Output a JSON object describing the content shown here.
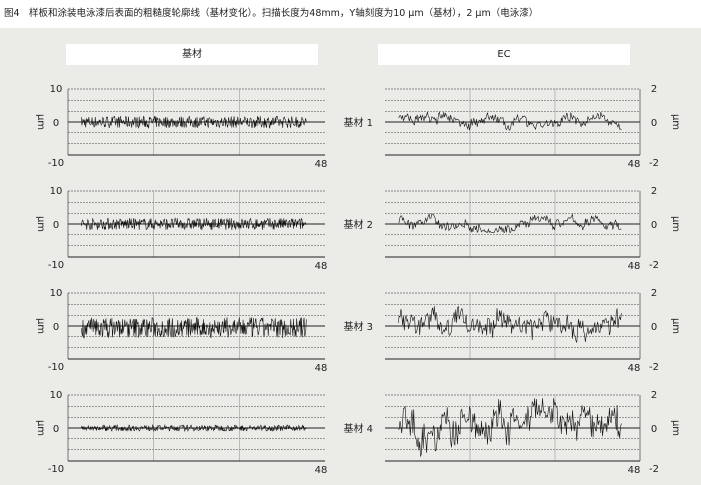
{
  "caption": "图4　样板和涂装电泳漆后表面的粗糙度轮廓线（基材变化）。扫描长度为48mm，Y轴刻度为10 μm（基材），2 μm（电泳漆）",
  "headers": {
    "left": "基材",
    "right": "EC"
  },
  "unit": "μm",
  "chart_data": [
    {
      "type": "line",
      "column": "基材",
      "row": "基材 1",
      "xlim": [
        0,
        48
      ],
      "ylim": [
        -10,
        10
      ],
      "yticks": [
        "10",
        "0",
        "-10"
      ],
      "xtick": "48",
      "approx_range": [
        -2,
        2
      ],
      "grid": true
    },
    {
      "type": "line",
      "column": "基材",
      "row": "基材 2",
      "xlim": [
        0,
        48
      ],
      "ylim": [
        -10,
        10
      ],
      "yticks": [
        "10",
        "0",
        "-10"
      ],
      "xtick": "48",
      "approx_range": [
        -2,
        2
      ],
      "grid": true
    },
    {
      "type": "line",
      "column": "基材",
      "row": "基材 3",
      "xlim": [
        0,
        48
      ],
      "ylim": [
        -10,
        10
      ],
      "yticks": [
        "10",
        "0",
        "-10"
      ],
      "xtick": "48",
      "approx_range": [
        -4,
        3
      ],
      "grid": true
    },
    {
      "type": "line",
      "column": "基材",
      "row": "基材 4",
      "xlim": [
        0,
        48
      ],
      "ylim": [
        -10,
        10
      ],
      "yticks": [
        "10",
        "0",
        "-10"
      ],
      "xtick": "48",
      "approx_range": [
        -1,
        1
      ],
      "grid": true
    },
    {
      "type": "line",
      "column": "EC",
      "row": "基材 1",
      "xlim": [
        0,
        48
      ],
      "ylim": [
        -2,
        2
      ],
      "yticks": [
        "2",
        "0",
        "-2"
      ],
      "xtick": "48",
      "approx_range": [
        -0.5,
        0.6
      ],
      "grid": true
    },
    {
      "type": "line",
      "column": "EC",
      "row": "基材 2",
      "xlim": [
        0,
        48
      ],
      "ylim": [
        -2,
        2
      ],
      "yticks": [
        "2",
        "0",
        "-2"
      ],
      "xtick": "48",
      "approx_range": [
        -0.5,
        0.6
      ],
      "grid": true
    },
    {
      "type": "line",
      "column": "EC",
      "row": "基材 3",
      "xlim": [
        0,
        48
      ],
      "ylim": [
        -2,
        2
      ],
      "yticks": [
        "2",
        "0",
        "-2"
      ],
      "xtick": "48",
      "approx_range": [
        -1,
        1.3
      ],
      "grid": true
    },
    {
      "type": "line",
      "column": "EC",
      "row": "基材 4",
      "xlim": [
        0,
        48
      ],
      "ylim": [
        -2,
        2
      ],
      "yticks": [
        "2",
        "0",
        "-2"
      ],
      "xtick": "48",
      "approx_range": [
        -1.8,
        1.8
      ],
      "grid": true
    }
  ]
}
